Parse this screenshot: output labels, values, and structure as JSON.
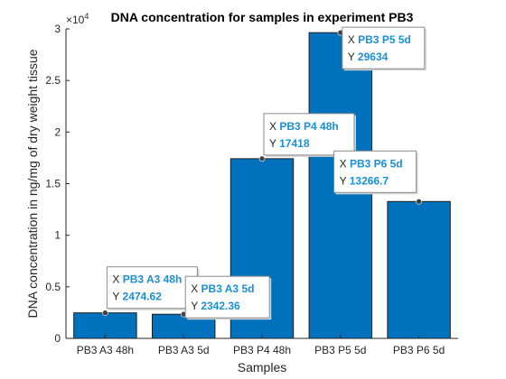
{
  "chart_data": {
    "type": "bar",
    "title": "DNA concentration for samples in experiment PB3",
    "xlabel": "Samples",
    "ylabel": "DNA concentration in ng/mg of dry weight tissue",
    "categories": [
      "PB3 A3 48h",
      "PB3 A3 5d",
      "PB3 P4 48h",
      "PB3 P5 5d",
      "PB3 P6 5d"
    ],
    "values": [
      2474.62,
      2342.36,
      17418,
      29634,
      13266.7
    ],
    "ylim": [
      0,
      30000
    ],
    "y_tick_values": [
      0,
      0.5,
      1,
      1.5,
      2,
      2.5,
      3
    ],
    "y_tick_labels": [
      "0",
      "0.5",
      "1",
      "1.5",
      "2",
      "2.5",
      "3"
    ],
    "y_multiplier_base": "×10",
    "y_multiplier_exponent": "4",
    "grid": false,
    "legend": "none",
    "bar_color": "#0072BD",
    "datatip_value_color": "#1a8fd8",
    "datatips": [
      {
        "category_index": 0,
        "x_key": "X",
        "x_text": "PB3 A3 48h",
        "y_key": "Y",
        "y_text": "2474.62"
      },
      {
        "category_index": 1,
        "x_key": "X",
        "x_text": "PB3 A3 5d",
        "y_key": "Y",
        "y_text": "2342.36"
      },
      {
        "category_index": 2,
        "x_key": "X",
        "x_text": "PB3 P4 48h",
        "y_key": "Y",
        "y_text": "17418"
      },
      {
        "category_index": 3,
        "x_key": "X",
        "x_text": "PB3 P5 5d",
        "y_key": "Y",
        "y_text": "29634"
      },
      {
        "category_index": 4,
        "x_key": "X",
        "x_text": "PB3 P6 5d",
        "y_key": "Y",
        "y_text": "13266.7"
      }
    ]
  }
}
